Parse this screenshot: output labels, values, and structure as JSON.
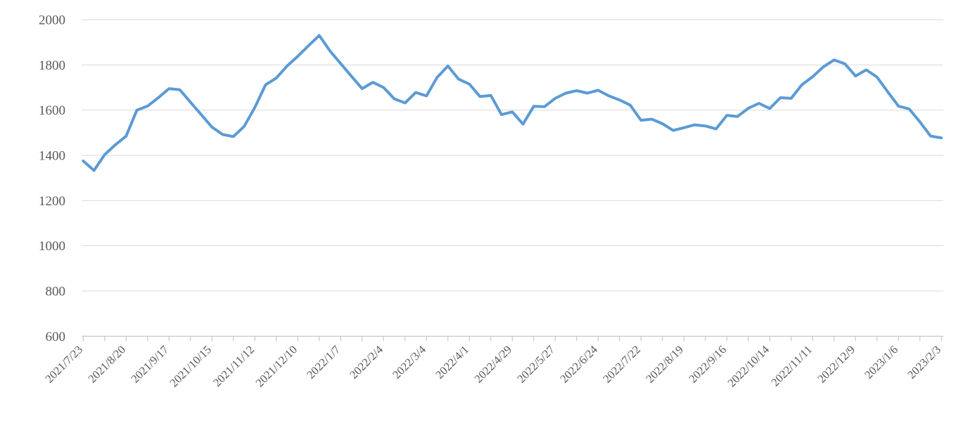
{
  "chart_data": {
    "type": "line",
    "title": "",
    "xlabel": "",
    "ylabel": "",
    "legend": "none",
    "grid": "horizontal",
    "ylim": [
      600,
      2000
    ],
    "ytick_step": 200,
    "ytick_labels": [
      "600",
      "800",
      "1000",
      "1200",
      "1400",
      "1600",
      "1800",
      "2000"
    ],
    "xtick_label_every_n_points": 4,
    "xtick_mark_every_n_points": 2,
    "x_label_rotation_deg": -45,
    "x": [
      "2021/7/23",
      "2021/7/30",
      "2021/8/6",
      "2021/8/13",
      "2021/8/20",
      "2021/8/27",
      "2021/9/3",
      "2021/9/10",
      "2021/9/17",
      "2021/9/24",
      "2021/10/1",
      "2021/10/8",
      "2021/10/15",
      "2021/10/22",
      "2021/10/29",
      "2021/11/5",
      "2021/11/12",
      "2021/11/19",
      "2021/11/26",
      "2021/12/3",
      "2021/12/10",
      "2021/12/17",
      "2021/12/24",
      "2021/12/31",
      "2022/1/7",
      "2022/1/14",
      "2022/1/21",
      "2022/1/28",
      "2022/2/4",
      "2022/2/11",
      "2022/2/18",
      "2022/2/25",
      "2022/3/4",
      "2022/3/11",
      "2022/3/18",
      "2022/3/25",
      "2022/4/1",
      "2022/4/8",
      "2022/4/15",
      "2022/4/22",
      "2022/4/29",
      "2022/5/6",
      "2022/5/13",
      "2022/5/20",
      "2022/5/27",
      "2022/6/3",
      "2022/6/10",
      "2022/6/17",
      "2022/6/24",
      "2022/7/1",
      "2022/7/8",
      "2022/7/15",
      "2022/7/22",
      "2022/7/29",
      "2022/8/5",
      "2022/8/12",
      "2022/8/19",
      "2022/8/26",
      "2022/9/2",
      "2022/9/9",
      "2022/9/16",
      "2022/9/23",
      "2022/9/30",
      "2022/10/7",
      "2022/10/14",
      "2022/10/21",
      "2022/10/28",
      "2022/11/4",
      "2022/11/11",
      "2022/11/18",
      "2022/11/25",
      "2022/12/2",
      "2022/12/9",
      "2022/12/16",
      "2022/12/23",
      "2022/12/30",
      "2023/1/6",
      "2023/1/13",
      "2023/1/20",
      "2023/1/27",
      "2023/2/3"
    ],
    "xtick_labels_shown": [
      "2021/7/23",
      "2021/8/20",
      "2021/9/17",
      "2021/10/15",
      "2021/11/12",
      "2021/12/10",
      "2022/1/7",
      "2022/2/4",
      "2022/3/4",
      "2022/4/1",
      "2022/4/29",
      "2022/5/27",
      "2022/6/24",
      "2022/7/22",
      "2022/8/19",
      "2022/9/16",
      "2022/10/14",
      "2022/11/11",
      "2022/12/9",
      "2023/1/6",
      "2023/2/3"
    ],
    "values": [
      1375,
      1333,
      1403,
      1447,
      1485,
      1600,
      1618,
      1655,
      1695,
      1690,
      1635,
      1580,
      1525,
      1492,
      1483,
      1528,
      1612,
      1712,
      1742,
      1795,
      1838,
      1885,
      1930,
      1862,
      1806,
      1750,
      1695,
      1723,
      1700,
      1650,
      1632,
      1678,
      1663,
      1745,
      1795,
      1737,
      1715,
      1660,
      1665,
      1580,
      1592,
      1538,
      1617,
      1615,
      1652,
      1675,
      1686,
      1675,
      1688,
      1663,
      1645,
      1622,
      1555,
      1560,
      1540,
      1510,
      1522,
      1535,
      1530,
      1517,
      1577,
      1572,
      1608,
      1630,
      1607,
      1655,
      1652,
      1712,
      1748,
      1791,
      1822,
      1805,
      1751,
      1778,
      1746,
      1681,
      1618,
      1605,
      1548,
      1485,
      1477
    ],
    "series_name": "",
    "colors": {
      "line": "#5B9BD5",
      "gridline": "#D9D9D9",
      "axis_line": "#BFBFBF",
      "tick_mark": "#BFBFBF",
      "label_text": "#595959",
      "background": "#FFFFFF"
    }
  }
}
